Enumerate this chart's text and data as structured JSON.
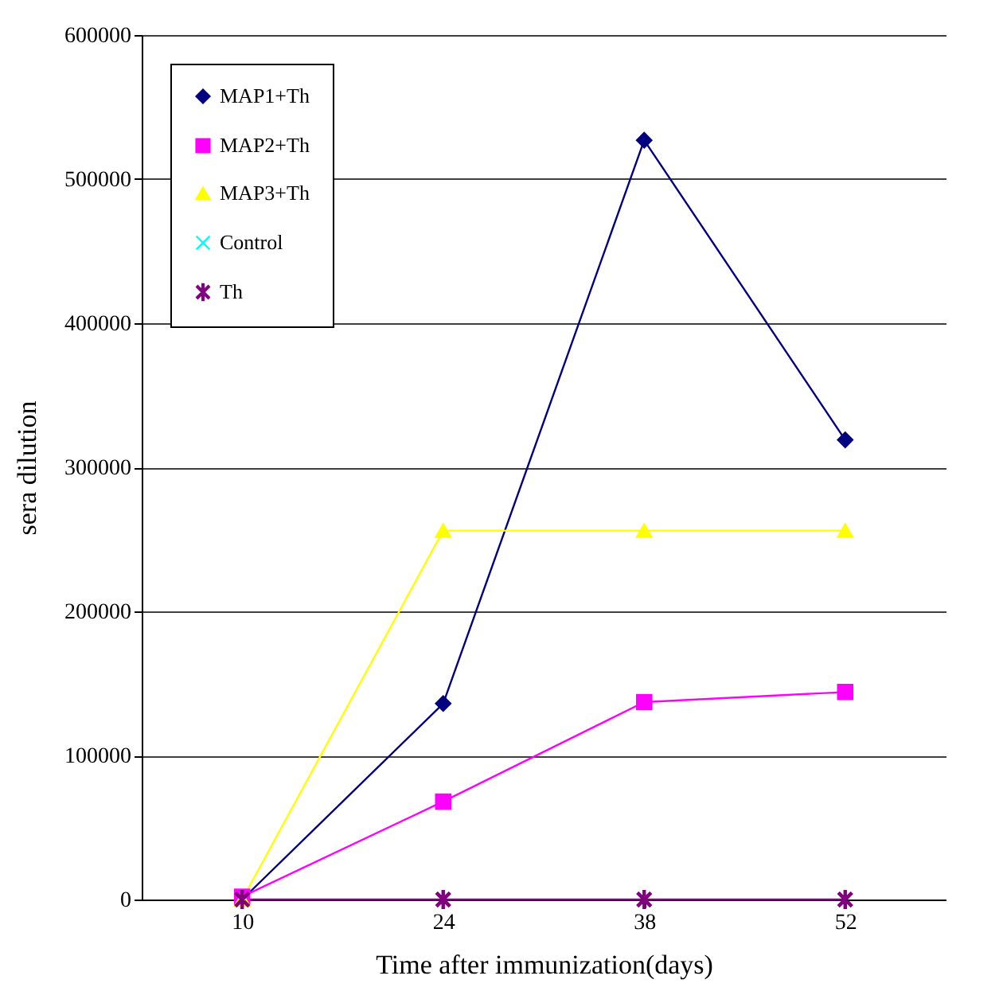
{
  "chart_data": {
    "type": "line",
    "xlabel": "Time after immunization(days)",
    "ylabel": "sera dilution",
    "categories": [
      "10",
      "24",
      "38",
      "52"
    ],
    "ylim": [
      0,
      600000
    ],
    "yticks": [
      0,
      100000,
      200000,
      300000,
      400000,
      500000,
      600000
    ],
    "grid": "y",
    "legend": "top left",
    "line_style": "solid",
    "series": [
      {
        "name": "MAP1+Th",
        "color": "#000080",
        "marker": "diamond",
        "values": [
          0,
          136000,
          527000,
          319000
        ]
      },
      {
        "name": "MAP2+Th",
        "color": "#ff00ff",
        "marker": "square",
        "values": [
          2000,
          68000,
          137000,
          144000
        ]
      },
      {
        "name": "MAP3+Th",
        "color": "#ffff00",
        "marker": "triangle",
        "values": [
          0,
          256000,
          256000,
          256000
        ]
      },
      {
        "name": "Control",
        "color": "#00ffff",
        "values": [
          null,
          null,
          null,
          null
        ]
      },
      {
        "name": "Th",
        "color": "#800080",
        "marker": "cross",
        "values": [
          0,
          0,
          0,
          0
        ]
      }
    ]
  }
}
